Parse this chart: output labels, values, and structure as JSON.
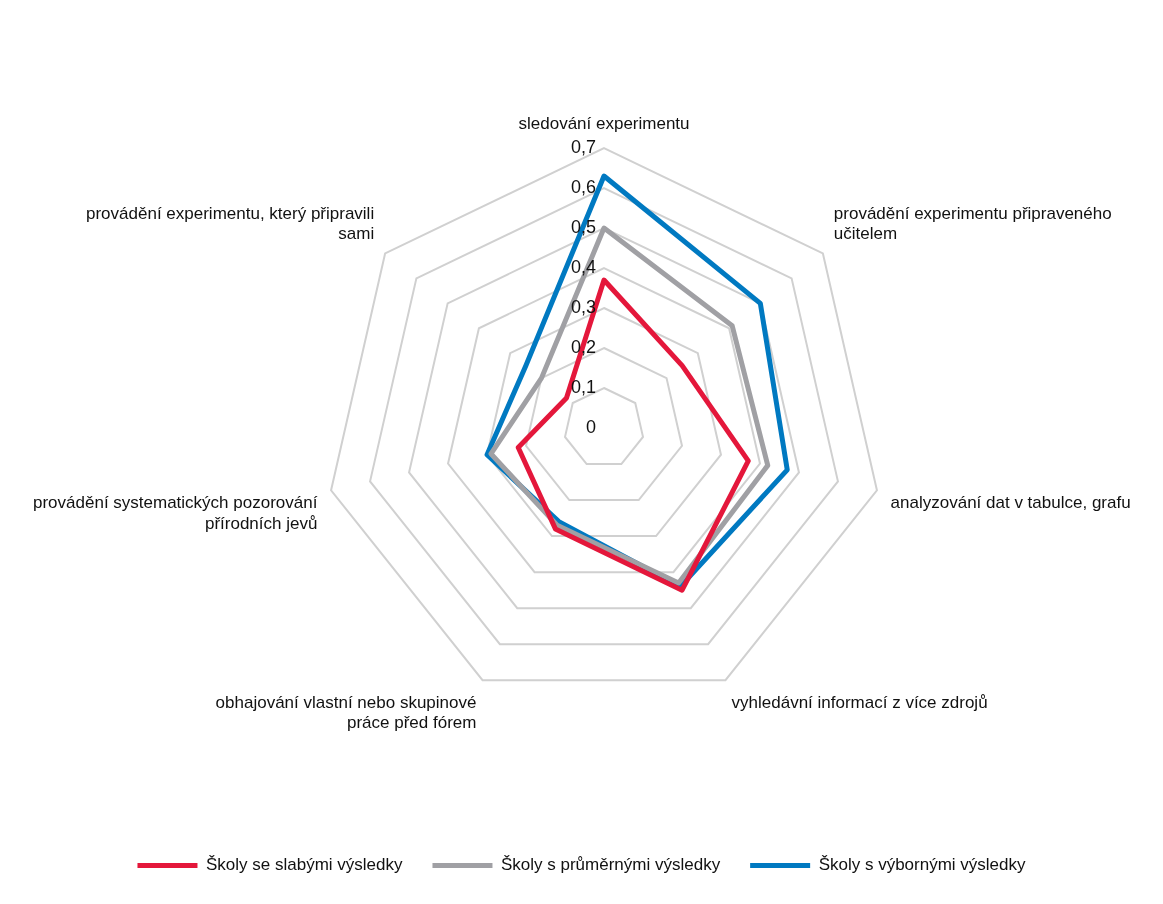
{
  "chart_data": {
    "type": "radar",
    "categories": [
      "sledování experimentu",
      "provádění experimentu připraveného učitelem",
      "analyzování dat v tabulce, grafu",
      "vyhledávní informací z více zdrojů",
      "obhajování vlastní nebo skupinové práce před fórem",
      "provádění systematických pozorování přírodních jevů",
      "provádění experimentu, který připravili sami"
    ],
    "series": [
      {
        "name": "Školy se slabými výsledky",
        "color": "#e4173b",
        "values": [
          0.37,
          0.25,
          0.37,
          0.45,
          0.28,
          0.22,
          0.12
        ]
      },
      {
        "name": "Školy s průměrnými výsledky",
        "color": "#a0a0a4",
        "values": [
          0.5,
          0.41,
          0.42,
          0.43,
          0.27,
          0.29,
          0.2
        ]
      },
      {
        "name": "Školy s výbornými výsledky",
        "color": "#0079c1",
        "values": [
          0.63,
          0.5,
          0.47,
          0.44,
          0.26,
          0.3,
          0.25
        ]
      }
    ],
    "ylim": [
      0,
      0.7
    ],
    "yticks": [
      0,
      {
        "value": 0.1,
        "label": "0,1"
      },
      {
        "value": 0.2,
        "label": "0,2"
      },
      {
        "value": 0.3,
        "label": "0,3"
      },
      {
        "value": 0.4,
        "label": "0,4"
      },
      {
        "value": 0.5,
        "label": "0,5"
      },
      {
        "value": 0.6,
        "label": "0,6"
      },
      {
        "value": 0.7,
        "label": "0,7"
      }
    ],
    "grid": true,
    "legend": "bottom",
    "marker": "none"
  }
}
